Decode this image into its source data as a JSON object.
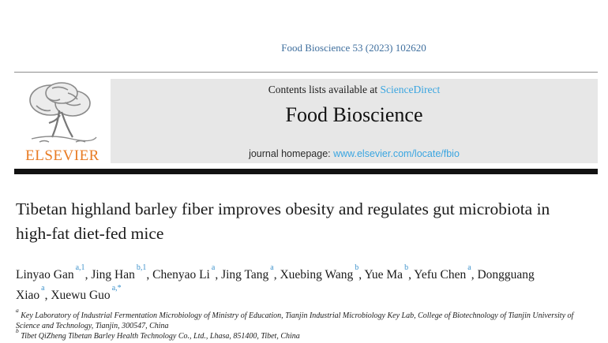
{
  "page": {
    "running_head": "Food Bioscience 53 (2023) 102620"
  },
  "banner": {
    "contents_line_prefix": "Contents lists available at ",
    "sciencedirect_label": "ScienceDirect",
    "journal_title": "Food Bioscience",
    "homepage_prefix": "journal homepage: ",
    "homepage_url": "www.elsevier.com/locate/fbio",
    "logo_text": "ELSEVIER",
    "logo_icon": "elsevier-tree-icon"
  },
  "article": {
    "title": "Tibetan highland barley fiber improves obesity and regulates gut microbiota in high-fat diet-fed mice",
    "authors": [
      {
        "name": "Linyao Gan",
        "sup": "a,1"
      },
      {
        "name": "Jing Han",
        "sup": "b,1"
      },
      {
        "name": "Chenyao Li",
        "sup": "a"
      },
      {
        "name": "Jing Tang",
        "sup": "a"
      },
      {
        "name": "Xuebing Wang",
        "sup": "b"
      },
      {
        "name": "Yue Ma",
        "sup": "b"
      },
      {
        "name": "Yefu Chen",
        "sup": "a"
      },
      {
        "name": "Dongguang Xiao",
        "sup": "a"
      },
      {
        "name": "Xuewu Guo",
        "sup": "a,*"
      }
    ],
    "affiliations": [
      {
        "marker": "a",
        "text": "Key Laboratory of Industrial Fermentation Microbiology of Ministry of Education, Tianjin Industrial Microbiology Key Lab, College of Biotechnology of Tianjin University of Science and Technology, Tianjin, 300547, China"
      },
      {
        "marker": "b",
        "text": "Tibet QiZheng Tibetan Barley Health Technology Co., Ltd., Lhasa, 851400, Tibet, China"
      }
    ]
  },
  "colors": {
    "head_blue": "#3f6f9e",
    "link_blue": "#3aa5e0",
    "sup_blue": "#3f93cc",
    "elsevier_orange": "#e87b23",
    "banner_gray": "#e7e7e7",
    "bar_black": "#121212"
  }
}
